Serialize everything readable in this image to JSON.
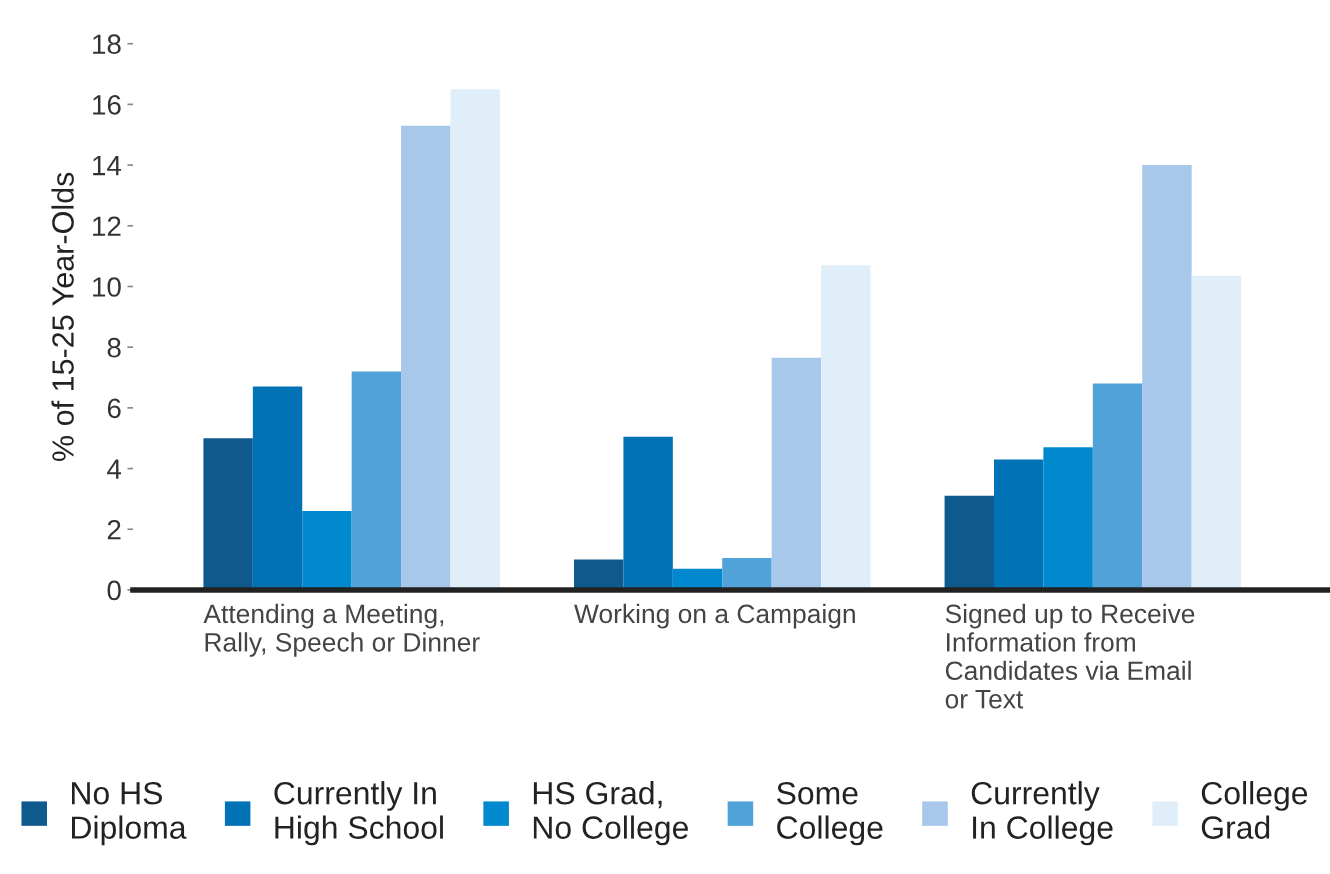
{
  "chart_data": {
    "type": "bar",
    "ylabel": "% of 15-25 Year-Olds",
    "categories": [
      "Attending a Meeting,\nRally, Speech or Dinner",
      "Working on a Campaign",
      "Signed up to Receive\nInformation from\nCandidates via Email\nor Text"
    ],
    "series": [
      {
        "name": "No HS\nDiploma",
        "color": "#0f5a8c",
        "values": [
          5.0,
          1.0,
          3.1
        ]
      },
      {
        "name": "Currently In\nHigh School",
        "color": "#0072b5",
        "values": [
          6.7,
          5.05,
          4.3
        ]
      },
      {
        "name": "HS Grad,\nNo College",
        "color": "#0089cf",
        "values": [
          2.6,
          0.7,
          4.7
        ]
      },
      {
        "name": "Some\nCollege",
        "color": "#50a2d9",
        "values": [
          7.2,
          1.05,
          6.8
        ]
      },
      {
        "name": "Currently\nIn College",
        "color": "#a7c8ea",
        "values": [
          15.3,
          7.65,
          14.0
        ]
      },
      {
        "name": "College\nGrad",
        "color": "#e0eef9",
        "values": [
          16.5,
          10.7,
          10.35
        ]
      }
    ],
    "ylim": [
      0,
      18
    ],
    "yticks": [
      0,
      2,
      4,
      6,
      8,
      10,
      12,
      14,
      16,
      18
    ],
    "grid": false,
    "legend": "bottom"
  }
}
